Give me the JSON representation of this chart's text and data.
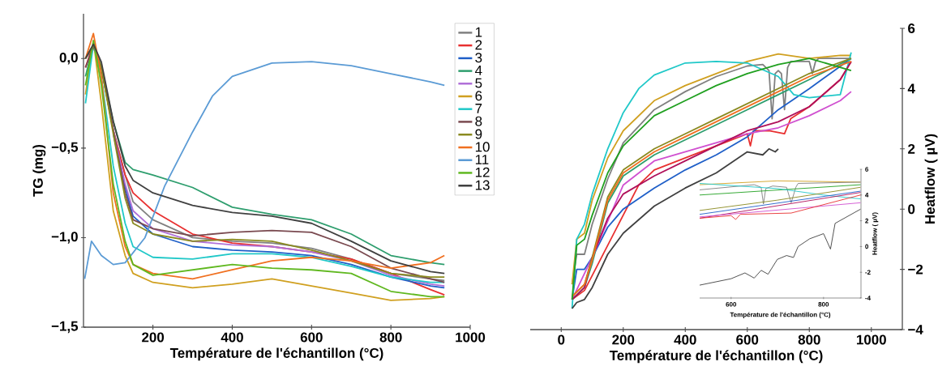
{
  "chart_data": [
    {
      "type": "line",
      "xlabel": "Température de l'échantillon (°C)",
      "ylabel": "TG (mg)",
      "legend": "right",
      "line_style": "solid",
      "xlim": [
        25,
        1000
      ],
      "xticks": [
        200,
        400,
        600,
        800,
        1000
      ],
      "ylim": [
        -1.5,
        0.25
      ],
      "yticks": [
        {
          "value": -1.5,
          "label": "−1,5"
        },
        {
          "value": -1.0,
          "label": "−1,0"
        },
        {
          "value": -0.5,
          "label": "−0,5"
        },
        {
          "value": 0.0,
          "label": "0,0"
        }
      ],
      "x": [
        30,
        50,
        70,
        100,
        130,
        150,
        200,
        300,
        400,
        500,
        600,
        700,
        800,
        900,
        935
      ],
      "series": [
        {
          "name": "1",
          "color": "#808080",
          "values": [
            0.0,
            0.06,
            -0.05,
            -0.4,
            -0.65,
            -0.8,
            -0.9,
            -1.0,
            -1.02,
            -1.03,
            -1.06,
            -1.12,
            -1.2,
            -1.23,
            -1.24
          ]
        },
        {
          "name": "2",
          "color": "#e83030",
          "values": [
            -0.05,
            0.08,
            -0.05,
            -0.4,
            -0.65,
            -0.75,
            -0.85,
            -0.98,
            -1.03,
            -1.05,
            -1.08,
            -1.12,
            -1.2,
            -1.29,
            -1.32
          ]
        },
        {
          "name": "3",
          "color": "#1f5fc8",
          "values": [
            null,
            null,
            null,
            -0.42,
            -0.72,
            -0.88,
            -0.98,
            -1.05,
            -1.07,
            -1.08,
            -1.1,
            -1.15,
            -1.22,
            -1.27,
            -1.28
          ]
        },
        {
          "name": "4",
          "color": "#2e9e6e",
          "values": [
            -0.1,
            0.08,
            -0.05,
            -0.35,
            -0.58,
            -0.62,
            -0.65,
            -0.72,
            -0.83,
            -0.87,
            -0.9,
            -0.98,
            -1.1,
            -1.14,
            -1.15
          ]
        },
        {
          "name": "5",
          "color": "#b070d8",
          "values": [
            null,
            null,
            null,
            -0.4,
            -0.7,
            -0.85,
            -0.95,
            -1.02,
            -1.04,
            -1.05,
            -1.08,
            -1.13,
            -1.21,
            -1.26,
            -1.27
          ]
        },
        {
          "name": "6",
          "color": "#d0a020",
          "values": [
            -0.2,
            0.1,
            -0.25,
            -0.85,
            -1.1,
            -1.2,
            -1.25,
            -1.28,
            -1.26,
            -1.23,
            -1.27,
            -1.31,
            -1.35,
            -1.34,
            -1.33
          ]
        },
        {
          "name": "7",
          "color": "#20c8c8",
          "values": [
            -0.25,
            0.08,
            -0.1,
            -0.6,
            -0.92,
            -1.05,
            -1.11,
            -1.12,
            -1.09,
            -1.09,
            -1.11,
            -1.16,
            -1.22,
            -1.25,
            -1.25
          ]
        },
        {
          "name": "8",
          "color": "#7a4a50",
          "values": [
            -0.05,
            0.07,
            -0.05,
            -0.4,
            -0.75,
            -0.9,
            -0.95,
            -0.99,
            -0.97,
            -0.96,
            -0.97,
            -1.05,
            -1.17,
            -1.23,
            -1.25
          ]
        },
        {
          "name": "9",
          "color": "#8a8a20",
          "values": [
            0.0,
            0.08,
            -0.05,
            -0.42,
            -0.78,
            -0.92,
            -0.98,
            -1.02,
            -1.01,
            -1.02,
            -1.07,
            -1.13,
            -1.2,
            -1.22,
            -1.22
          ]
        },
        {
          "name": "10",
          "color": "#f07020",
          "values": [
            0.0,
            0.14,
            -0.1,
            -0.75,
            -1.05,
            -1.15,
            -1.2,
            -1.23,
            -1.18,
            -1.13,
            -1.11,
            -1.13,
            -1.17,
            -1.14,
            -1.1
          ]
        },
        {
          "name": "11",
          "color": "#5b9bd5",
          "x": [
            28,
            45,
            70,
            100,
            130,
            180,
            230,
            300,
            350,
            400,
            500,
            600,
            700,
            800,
            900,
            935
          ],
          "values": [
            -1.23,
            -1.02,
            -1.1,
            -1.15,
            -1.14,
            -1.0,
            -0.71,
            -0.41,
            -0.21,
            -0.1,
            -0.025,
            -0.017,
            -0.04,
            -0.085,
            -0.13,
            -0.15
          ]
        },
        {
          "name": "12",
          "color": "#60b820",
          "values": [
            -0.15,
            0.1,
            -0.15,
            -0.7,
            -1.02,
            -1.15,
            -1.21,
            -1.18,
            -1.15,
            -1.17,
            -1.18,
            -1.2,
            -1.3,
            -1.33,
            -1.33
          ]
        },
        {
          "name": "13",
          "color": "#404040",
          "values": [
            0.0,
            0.08,
            -0.02,
            -0.35,
            -0.6,
            -0.68,
            -0.75,
            -0.82,
            -0.86,
            -0.88,
            -0.92,
            -1.02,
            -1.13,
            -1.19,
            -1.2
          ]
        }
      ]
    },
    {
      "type": "line",
      "xlabel": "Température de l'échantillon (°C)",
      "y2label": "Heatflow ( µV)",
      "line_style": "solid",
      "xlim": [
        -100,
        1100
      ],
      "xticks": [
        0,
        200,
        400,
        600,
        800,
        1000
      ],
      "y2lim": [
        -4,
        6
      ],
      "y2ticks": [
        {
          "value": -4,
          "label": "−4"
        },
        {
          "value": -2,
          "label": "−2"
        },
        0,
        2,
        4,
        6
      ],
      "series": [
        {
          "color": "#808080",
          "axis": "y2",
          "x": [
            35,
            50,
            75,
            100,
            150,
            200,
            300,
            400,
            500,
            600,
            650,
            670,
            680,
            690,
            700,
            710,
            720,
            730,
            740,
            800,
            810,
            820,
            830,
            935
          ],
          "values": [
            -2.5,
            -1.5,
            -1.5,
            -0.5,
            1.0,
            2.2,
            3.3,
            3.9,
            4.4,
            4.75,
            4.8,
            4.6,
            3.0,
            4.5,
            4.6,
            4.5,
            3.3,
            4.7,
            4.9,
            4.9,
            4.5,
            4.9,
            5.0,
            5.0
          ]
        },
        {
          "color": "#e83030",
          "axis": "y2",
          "x": [
            35,
            75,
            100,
            200,
            250,
            300,
            400,
            500,
            600,
            610,
            620,
            670,
            720,
            740,
            800,
            900,
            935
          ],
          "values": [
            -3.0,
            -2.7,
            -2.2,
            -0.2,
            0.8,
            1.3,
            1.7,
            2.1,
            2.5,
            2.1,
            2.6,
            2.6,
            2.5,
            3.0,
            3.4,
            4.3,
            4.9
          ]
        },
        {
          "color": "#1f5fc8",
          "axis": "y2",
          "x": [
            35,
            50,
            75,
            100,
            150,
            200,
            300,
            400,
            500,
            600,
            700,
            800,
            935
          ],
          "values": [
            -3.0,
            -2.0,
            -2.0,
            -1.6,
            -0.6,
            0.0,
            0.7,
            1.3,
            1.8,
            2.4,
            3.3,
            4.0,
            5.0
          ]
        },
        {
          "color": "#2e9e6e",
          "axis": "y2",
          "x": [
            35,
            75,
            100,
            150,
            200,
            300,
            400,
            500,
            600,
            700,
            800,
            935
          ],
          "values": [
            -3.0,
            -2.6,
            -1.8,
            0.2,
            1.1,
            1.8,
            2.3,
            2.8,
            3.3,
            3.8,
            4.3,
            5.0
          ]
        },
        {
          "color": "#d050d0",
          "axis": "y2",
          "x": [
            35,
            100,
            200,
            300,
            400,
            500,
            600,
            700,
            800,
            900,
            935
          ],
          "values": [
            -3.0,
            -1.6,
            0.8,
            1.6,
            1.9,
            2.2,
            2.5,
            2.7,
            3.1,
            3.6,
            3.9
          ]
        },
        {
          "color": "#d0a020",
          "axis": "y2",
          "x": [
            35,
            50,
            75,
            100,
            150,
            200,
            300,
            400,
            500,
            600,
            700,
            800,
            900,
            935
          ],
          "values": [
            -2.5,
            -1.0,
            -0.8,
            0.3,
            1.7,
            2.6,
            3.6,
            4.1,
            4.5,
            4.9,
            5.15,
            5.0,
            5.1,
            5.1
          ]
        },
        {
          "color": "#20c8c8",
          "axis": "y2",
          "x": [
            35,
            50,
            75,
            100,
            150,
            200,
            250,
            300,
            400,
            500,
            600,
            700,
            750,
            800,
            900,
            935
          ],
          "values": [
            -3.3,
            -1.0,
            -0.5,
            0.5,
            2.0,
            3.2,
            4.0,
            4.45,
            4.85,
            4.9,
            4.85,
            4.4,
            3.8,
            3.7,
            3.8,
            5.2
          ]
        },
        {
          "color": "#b0105a",
          "axis": "y2",
          "x": [
            35,
            75,
            100,
            150,
            200,
            300,
            400,
            500,
            600,
            700,
            800,
            900,
            935
          ],
          "values": [
            -3.0,
            -2.6,
            -1.6,
            -0.3,
            0.5,
            1.1,
            1.6,
            2.1,
            2.6,
            2.9,
            3.4,
            4.3,
            4.9
          ]
        },
        {
          "color": "#8a8a20",
          "axis": "y2",
          "x": [
            35,
            75,
            100,
            150,
            200,
            300,
            400,
            500,
            600,
            700,
            800,
            935
          ],
          "values": [
            -2.9,
            -2.5,
            -1.6,
            0.4,
            1.3,
            2.0,
            2.5,
            3.0,
            3.5,
            4.0,
            4.5,
            5.0
          ]
        },
        {
          "color": "#f07020",
          "axis": "y2",
          "x": [
            35,
            75,
            100,
            150,
            200,
            300,
            400,
            500,
            600,
            700,
            800,
            935
          ],
          "values": [
            -2.9,
            -2.5,
            -1.7,
            0.3,
            1.2,
            1.9,
            2.4,
            2.9,
            3.4,
            3.9,
            4.4,
            4.9
          ]
        },
        {
          "color": "#20a020",
          "axis": "y2",
          "x": [
            35,
            50,
            75,
            100,
            150,
            200,
            300,
            400,
            500,
            600,
            700,
            800,
            935
          ],
          "values": [
            -3.0,
            -1.2,
            -1.0,
            -0.2,
            1.2,
            2.1,
            3.1,
            3.6,
            4.1,
            4.5,
            4.8,
            5.0,
            4.6
          ]
        },
        {
          "color": "#404040",
          "axis": "y2",
          "x": [
            35,
            50,
            75,
            100,
            150,
            200,
            300,
            400,
            500,
            600,
            650,
            670,
            690,
            700
          ],
          "values": [
            -3.3,
            -3.1,
            -3.0,
            -2.6,
            -1.5,
            -0.8,
            0.1,
            0.7,
            1.2,
            1.9,
            1.8,
            2.0,
            1.9,
            2.0
          ]
        }
      ]
    },
    {
      "type": "line",
      "xlabel": "Température de l'échantillon (°C)",
      "y2label": "Heatflow ( µV)",
      "line_style": "solid",
      "xlim": [
        532,
        881
      ],
      "xticks": [
        600,
        800
      ],
      "y2lim": [
        -4,
        6
      ],
      "y2ticks": [
        -4,
        -2,
        0,
        2,
        4,
        6
      ],
      "series": [
        {
          "color": "#d0a020",
          "axis": "y2",
          "x": [
            532,
            700,
            880
          ],
          "values": [
            4.8,
            5.1,
            5.0
          ]
        },
        {
          "color": "#808080",
          "axis": "y2",
          "x": [
            532,
            650,
            665,
            670,
            675,
            690,
            720,
            730,
            740,
            745,
            880
          ],
          "values": [
            4.4,
            4.8,
            4.6,
            3.3,
            4.5,
            4.7,
            4.6,
            3.4,
            4.6,
            4.9,
            5.0
          ]
        },
        {
          "color": "#20a020",
          "axis": "y2",
          "x": [
            532,
            880
          ],
          "values": [
            4.0,
            4.8
          ]
        },
        {
          "color": "#20c8c8",
          "axis": "y2",
          "x": [
            532,
            700,
            800,
            880
          ],
          "values": [
            4.9,
            4.5,
            4.0,
            3.7
          ]
        },
        {
          "color": "#8a8a20",
          "axis": "y2",
          "x": [
            532,
            700,
            880
          ],
          "values": [
            2.8,
            3.6,
            4.6
          ]
        },
        {
          "color": "#1f5fc8",
          "axis": "y2",
          "x": [
            532,
            880
          ],
          "values": [
            2.5,
            4.3
          ]
        },
        {
          "color": "#b0105a",
          "axis": "y2",
          "x": [
            532,
            880
          ],
          "values": [
            2.2,
            4.2
          ]
        },
        {
          "color": "#d050d0",
          "axis": "y2",
          "x": [
            532,
            880
          ],
          "values": [
            2.3,
            3.4
          ]
        },
        {
          "color": "#e83030",
          "axis": "y2",
          "x": [
            532,
            600,
            610,
            620,
            730,
            880
          ],
          "values": [
            2.2,
            2.4,
            2.1,
            2.5,
            2.6,
            4.0
          ]
        },
        {
          "color": "#404040",
          "axis": "y2",
          "x": [
            532,
            600,
            630,
            650,
            665,
            680,
            700,
            720,
            735,
            745,
            770,
            800,
            815,
            825,
            880
          ],
          "values": [
            -3.0,
            -2.5,
            -2.05,
            -2.45,
            -1.85,
            -2.15,
            -1.0,
            -0.7,
            -0.85,
            0.0,
            0.6,
            1.0,
            -0.2,
            1.8,
            2.9
          ]
        }
      ]
    }
  ]
}
